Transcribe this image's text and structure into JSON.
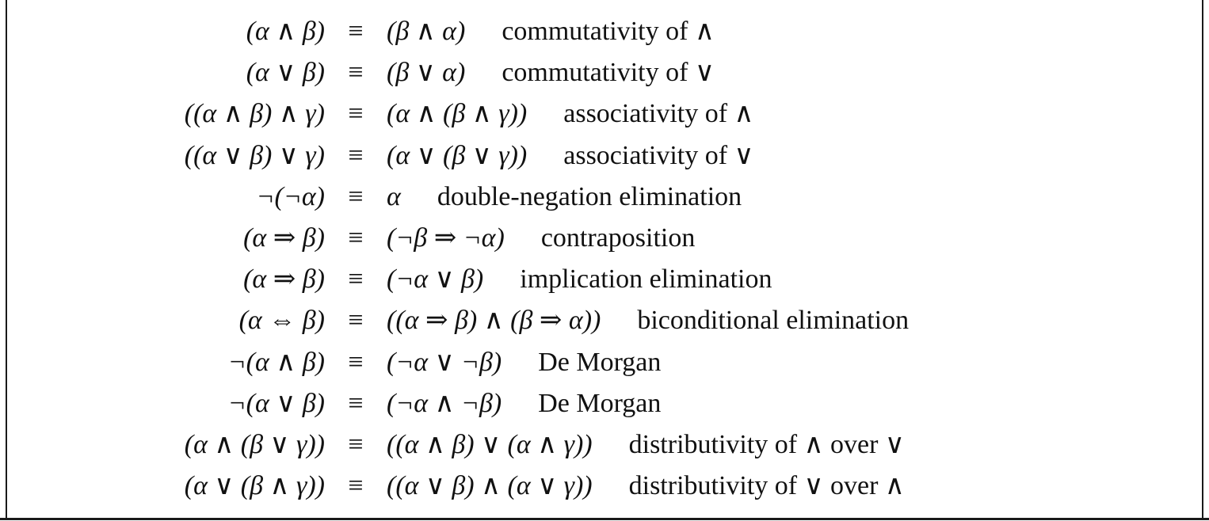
{
  "equivalence_symbol": "≡",
  "rows": [
    {
      "lhs": "(α ∧ β)",
      "rhs": "(β ∧ α)",
      "name": "commutativity of ∧"
    },
    {
      "lhs": "(α ∨ β)",
      "rhs": "(β ∨ α)",
      "name": "commutativity of ∨"
    },
    {
      "lhs": "((α ∧ β) ∧ γ)",
      "rhs": "(α ∧ (β ∧ γ))",
      "name": "associativity of ∧"
    },
    {
      "lhs": "((α ∨ β) ∨ γ)",
      "rhs": "(α ∨ (β ∨ γ))",
      "name": "associativity of ∨"
    },
    {
      "lhs": "¬(¬α)",
      "rhs": "α",
      "name": "double-negation elimination"
    },
    {
      "lhs": "(α ⇒ β)",
      "rhs": "(¬β ⇒ ¬α)",
      "name": "contraposition"
    },
    {
      "lhs": "(α ⇒ β)",
      "rhs": "(¬α ∨ β)",
      "name": "implication elimination"
    },
    {
      "lhs": "(α ⇔ β)",
      "rhs": "((α ⇒ β) ∧ (β ⇒ α))",
      "name": "biconditional elimination"
    },
    {
      "lhs": "¬(α ∧ β)",
      "rhs": "(¬α ∨ ¬β)",
      "name": "De Morgan"
    },
    {
      "lhs": "¬(α ∨ β)",
      "rhs": "(¬α ∧ ¬β)",
      "name": "De Morgan"
    },
    {
      "lhs": "(α ∧ (β ∨ γ))",
      "rhs": "((α ∧ β) ∨ (α ∧ γ))",
      "name": "distributivity of ∧ over ∨"
    },
    {
      "lhs": "(α ∨ (β ∧ γ))",
      "rhs": "((α ∨ β) ∧ (α ∨ γ))",
      "name": "distributivity of ∨ over ∧"
    }
  ]
}
